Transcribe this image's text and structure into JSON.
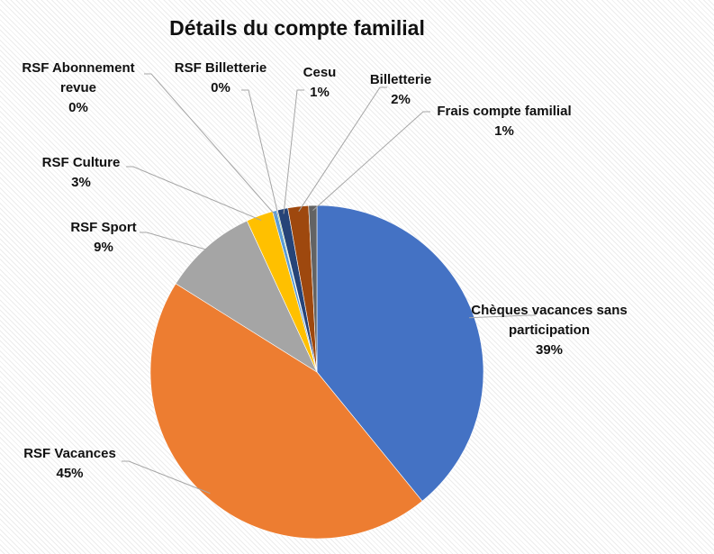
{
  "chart_data": {
    "type": "pie",
    "title": "Détails du compte familial",
    "slices": [
      {
        "label": "Chèques vacances sans participation",
        "pct_label": "39%",
        "value": 39.1,
        "color": "#4472C4"
      },
      {
        "label": "RSF Vacances",
        "pct_label": "45%",
        "value": 44.8,
        "color": "#ED7D31"
      },
      {
        "label": "RSF Sport",
        "pct_label": "9%",
        "value": 9.2,
        "color": "#A5A5A5"
      },
      {
        "label": "RSF Culture",
        "pct_label": "3%",
        "value": 2.6,
        "color": "#FFC000"
      },
      {
        "label": "RSF Abonnement revue",
        "pct_label": "0%",
        "value": 0.4,
        "color": "#5B9BD5"
      },
      {
        "label": "RSF Billetterie",
        "pct_label": "0%",
        "value": 0.1,
        "color": "#70AD47"
      },
      {
        "label": "Cesu",
        "pct_label": "1%",
        "value": 1.0,
        "color": "#264478"
      },
      {
        "label": "Billetterie",
        "pct_label": "2%",
        "value": 2.0,
        "color": "#9E480E"
      },
      {
        "label": "Frais compte familial",
        "pct_label": "1%",
        "value": 0.8,
        "color": "#636363"
      }
    ],
    "legend": "none"
  }
}
